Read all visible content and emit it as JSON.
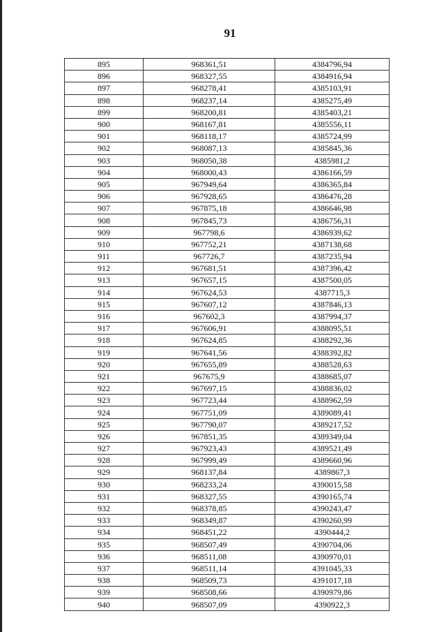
{
  "page_number": "91",
  "rows": [
    [
      "895",
      "968361,51",
      "4384796,94"
    ],
    [
      "896",
      "968327,55",
      "4384916,94"
    ],
    [
      "897",
      "968278,41",
      "4385103,91"
    ],
    [
      "898",
      "968237,14",
      "4385275,49"
    ],
    [
      "899",
      "968200,81",
      "4385403,21"
    ],
    [
      "900",
      "968167,81",
      "4385556,11"
    ],
    [
      "901",
      "968118,17",
      "4385724,99"
    ],
    [
      "902",
      "968087,13",
      "4385845,36"
    ],
    [
      "903",
      "968050,38",
      "4385981,2"
    ],
    [
      "904",
      "968000,43",
      "4386166,59"
    ],
    [
      "905",
      "967949,64",
      "4386365,84"
    ],
    [
      "906",
      "967928,65",
      "4386476,28"
    ],
    [
      "907",
      "967875,18",
      "4386646,98"
    ],
    [
      "908",
      "967845,73",
      "4386756,31"
    ],
    [
      "909",
      "967798,6",
      "4386939,62"
    ],
    [
      "910",
      "967752,21",
      "4387138,68"
    ],
    [
      "911",
      "967726,7",
      "4387235,94"
    ],
    [
      "912",
      "967681,51",
      "4387396,42"
    ],
    [
      "913",
      "967657,15",
      "4387500,05"
    ],
    [
      "914",
      "967624,53",
      "4387715,3"
    ],
    [
      "915",
      "967607,12",
      "4387846,13"
    ],
    [
      "916",
      "967602,3",
      "4387994,37"
    ],
    [
      "917",
      "967606,91",
      "4388095,51"
    ],
    [
      "918",
      "967624,85",
      "4388292,36"
    ],
    [
      "919",
      "967641,56",
      "4388392,82"
    ],
    [
      "920",
      "967655,89",
      "4388528,63"
    ],
    [
      "921",
      "967675,9",
      "4388685,07"
    ],
    [
      "922",
      "967697,15",
      "4388836,02"
    ],
    [
      "923",
      "967723,44",
      "4388962,59"
    ],
    [
      "924",
      "967751,09",
      "4389089,41"
    ],
    [
      "925",
      "967790,07",
      "4389217,52"
    ],
    [
      "926",
      "967851,35",
      "4389349,04"
    ],
    [
      "927",
      "967923,43",
      "4389521,49"
    ],
    [
      "928",
      "967999,49",
      "4389660,96"
    ],
    [
      "929",
      "968137,84",
      "4389867,3"
    ],
    [
      "930",
      "968233,24",
      "4390015,58"
    ],
    [
      "931",
      "968327,55",
      "4390165,74"
    ],
    [
      "932",
      "968378,85",
      "4390243,47"
    ],
    [
      "933",
      "968349,87",
      "4390260,99"
    ],
    [
      "934",
      "968451,22",
      "4390444,2"
    ],
    [
      "935",
      "968507,49",
      "4390704,06"
    ],
    [
      "936",
      "968511,08",
      "4390970,01"
    ],
    [
      "937",
      "968511,14",
      "4391045,33"
    ],
    [
      "938",
      "968509,73",
      "4391017,18"
    ],
    [
      "939",
      "968508,66",
      "4390979,86"
    ],
    [
      "940",
      "968507,09",
      "4390922,3"
    ]
  ]
}
